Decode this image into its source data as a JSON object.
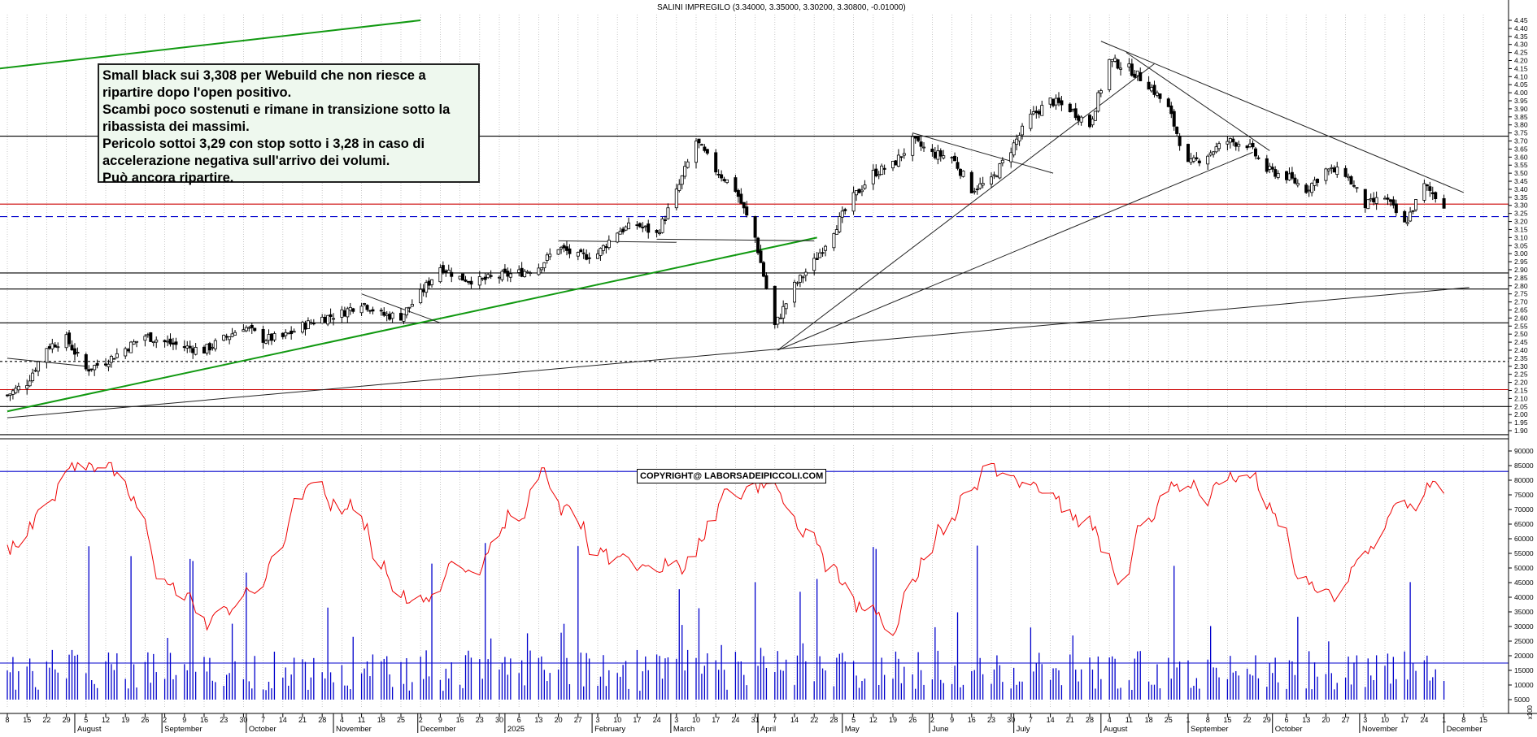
{
  "chart_data": [
    {
      "type": "candlestick",
      "title": "SALINI IMPREGILO (3.34000, 3.35000, 3.30200, 3.30800, -0.01000)",
      "ylim": [
        1.85,
        4.45
      ],
      "y_ticks": [
        1.9,
        1.95,
        2.0,
        2.05,
        2.1,
        2.15,
        2.2,
        2.25,
        2.3,
        2.35,
        2.4,
        2.45,
        2.5,
        2.55,
        2.6,
        2.65,
        2.7,
        2.75,
        2.8,
        2.85,
        2.9,
        2.95,
        3.0,
        3.05,
        3.1,
        3.15,
        3.2,
        3.25,
        3.3,
        3.35,
        3.4,
        3.45,
        3.5,
        3.55,
        3.6,
        3.65,
        3.7,
        3.75,
        3.8,
        3.85,
        3.9,
        3.95,
        4.0,
        4.05,
        4.1,
        4.15,
        4.2,
        4.25,
        4.3,
        4.35,
        4.4,
        4.45
      ],
      "grid": true,
      "price_path": [
        [
          "2024-07-08",
          2.12
        ],
        [
          "2024-07-15",
          2.2
        ],
        [
          "2024-07-22",
          2.42
        ],
        [
          "2024-07-29",
          2.47
        ],
        [
          "2024-08-05",
          2.28
        ],
        [
          "2024-08-12",
          2.33
        ],
        [
          "2024-08-19",
          2.41
        ],
        [
          "2024-08-26",
          2.49
        ],
        [
          "2024-09-02",
          2.45
        ],
        [
          "2024-09-09",
          2.42
        ],
        [
          "2024-09-16",
          2.4
        ],
        [
          "2024-09-23",
          2.47
        ],
        [
          "2024-09-30",
          2.55
        ],
        [
          "2024-10-07",
          2.47
        ],
        [
          "2024-10-14",
          2.48
        ],
        [
          "2024-10-21",
          2.55
        ],
        [
          "2024-10-28",
          2.6
        ],
        [
          "2024-11-04",
          2.63
        ],
        [
          "2024-11-11",
          2.7
        ],
        [
          "2024-11-18",
          2.62
        ],
        [
          "2024-11-25",
          2.61
        ],
        [
          "2024-12-02",
          2.75
        ],
        [
          "2024-12-09",
          2.92
        ],
        [
          "2024-12-16",
          2.85
        ],
        [
          "2024-12-23",
          2.83
        ],
        [
          "2024-12-30",
          2.86
        ],
        [
          "2025-01-06",
          2.88
        ],
        [
          "2025-01-13",
          2.92
        ],
        [
          "2025-01-20",
          3.04
        ],
        [
          "2025-01-27",
          2.98
        ],
        [
          "2025-02-03",
          3.0
        ],
        [
          "2025-02-10",
          3.14
        ],
        [
          "2025-02-17",
          3.18
        ],
        [
          "2025-02-24",
          3.12
        ],
        [
          "2025-03-03",
          3.38
        ],
        [
          "2025-03-10",
          3.7
        ],
        [
          "2025-03-17",
          3.52
        ],
        [
          "2025-03-24",
          3.4
        ],
        [
          "2025-03-31",
          3.1
        ],
        [
          "2025-04-07",
          2.55
        ],
        [
          "2025-04-14",
          2.8
        ],
        [
          "2025-04-21",
          2.95
        ],
        [
          "2025-04-28",
          3.15
        ],
        [
          "2025-05-05",
          3.35
        ],
        [
          "2025-05-12",
          3.5
        ],
        [
          "2025-05-19",
          3.55
        ],
        [
          "2025-05-26",
          3.7
        ],
        [
          "2025-06-02",
          3.62
        ],
        [
          "2025-06-09",
          3.6
        ],
        [
          "2025-06-16",
          3.4
        ],
        [
          "2025-06-23",
          3.45
        ],
        [
          "2025-06-30",
          3.65
        ],
        [
          "2025-07-07",
          3.85
        ],
        [
          "2025-07-14",
          3.95
        ],
        [
          "2025-07-21",
          3.9
        ],
        [
          "2025-07-28",
          3.8
        ],
        [
          "2025-08-04",
          4.2
        ],
        [
          "2025-08-11",
          4.15
        ],
        [
          "2025-08-18",
          4.05
        ],
        [
          "2025-08-25",
          3.9
        ],
        [
          "2025-09-01",
          3.55
        ],
        [
          "2025-09-08",
          3.62
        ],
        [
          "2025-09-15",
          3.7
        ],
        [
          "2025-09-22",
          3.68
        ],
        [
          "2025-09-29",
          3.52
        ],
        [
          "2025-10-06",
          3.48
        ],
        [
          "2025-10-13",
          3.4
        ],
        [
          "2025-10-20",
          3.52
        ],
        [
          "2025-10-27",
          3.5
        ],
        [
          "2025-11-03",
          3.3
        ],
        [
          "2025-11-10",
          3.35
        ],
        [
          "2025-11-17",
          3.18
        ],
        [
          "2025-11-24",
          3.42
        ],
        [
          "2025-12-01",
          3.31
        ]
      ],
      "horizontal_levels": [
        {
          "value": 3.73,
          "color": "#000000",
          "style": "solid"
        },
        {
          "value": 3.308,
          "color": "#cc0000",
          "style": "solid"
        },
        {
          "value": 3.23,
          "color": "#0000cc",
          "style": "dashed"
        },
        {
          "value": 2.88,
          "color": "#000000",
          "style": "solid"
        },
        {
          "value": 2.78,
          "color": "#000000",
          "style": "solid"
        },
        {
          "value": 2.57,
          "color": "#000000",
          "style": "solid"
        },
        {
          "value": 2.33,
          "color": "#000000",
          "style": "dashed"
        },
        {
          "value": 2.155,
          "color": "#cc0000",
          "style": "solid"
        },
        {
          "value": 2.05,
          "color": "#000000",
          "style": "solid"
        },
        {
          "value": 1.875,
          "color": "#000000",
          "style": "solid"
        }
      ]
    },
    {
      "type": "bar+line",
      "ylim": [
        0,
        90000
      ],
      "y_ticks": [
        5000,
        10000,
        15000,
        20000,
        25000,
        30000,
        35000,
        40000,
        45000,
        50000,
        55000,
        60000,
        65000,
        70000,
        75000,
        80000,
        85000,
        90000
      ],
      "y_label": "x100",
      "levels": [
        83000,
        17500
      ],
      "series": [
        {
          "kind": "bar",
          "color": "#0000cc"
        },
        {
          "kind": "line",
          "color": "#ee0000"
        }
      ]
    }
  ],
  "x_axis": {
    "day_labels": [
      "8",
      "15",
      "22",
      "29",
      "5",
      "12",
      "19",
      "26",
      "2",
      "9",
      "16",
      "23",
      "30",
      "7",
      "14",
      "21",
      "28",
      "4",
      "11",
      "18",
      "25",
      "2",
      "9",
      "16",
      "23",
      "30",
      "6",
      "13",
      "20",
      "27",
      "3",
      "10",
      "17",
      "24",
      "3",
      "10",
      "17",
      "24",
      "31",
      "7",
      "14",
      "22",
      "28",
      "5",
      "12",
      "19",
      "26",
      "2",
      "9",
      "16",
      "23",
      "30",
      "7",
      "14",
      "21",
      "28",
      "4",
      "11",
      "18",
      "25",
      "1",
      "8",
      "15",
      "22",
      "29",
      "6",
      "13",
      "20",
      "27",
      "3",
      "10",
      "17",
      "24",
      "1",
      "8",
      "15"
    ],
    "month_labels": [
      "August",
      "September",
      "October",
      "November",
      "December",
      "2025",
      "February",
      "March",
      "April",
      "May",
      "June",
      "July",
      "August",
      "September",
      "October",
      "November",
      "December"
    ]
  },
  "annotation": {
    "lines": [
      "Small black sui 3,308 per Webuild che non riesce a",
      "ripartire dopo l'open positivo.",
      "Scambi poco sostenuti e rimane in transizione sotto la",
      "ribassista dei massimi.",
      "Pericolo sottoi 3,29 con stop sotto  i 3,28 in caso di",
      "accelerazione negativa sull'arrivo dei volumi.",
      "Può ancora ripartire."
    ]
  },
  "copyright": "COPYRIGHT@ LABORSADEIPICCOLI.COM",
  "colors": {
    "candle": "#000000",
    "grid": "#bbbbbb",
    "volume": "#0000cc",
    "oscillator": "#ee0000",
    "green_trend": "#119911"
  }
}
